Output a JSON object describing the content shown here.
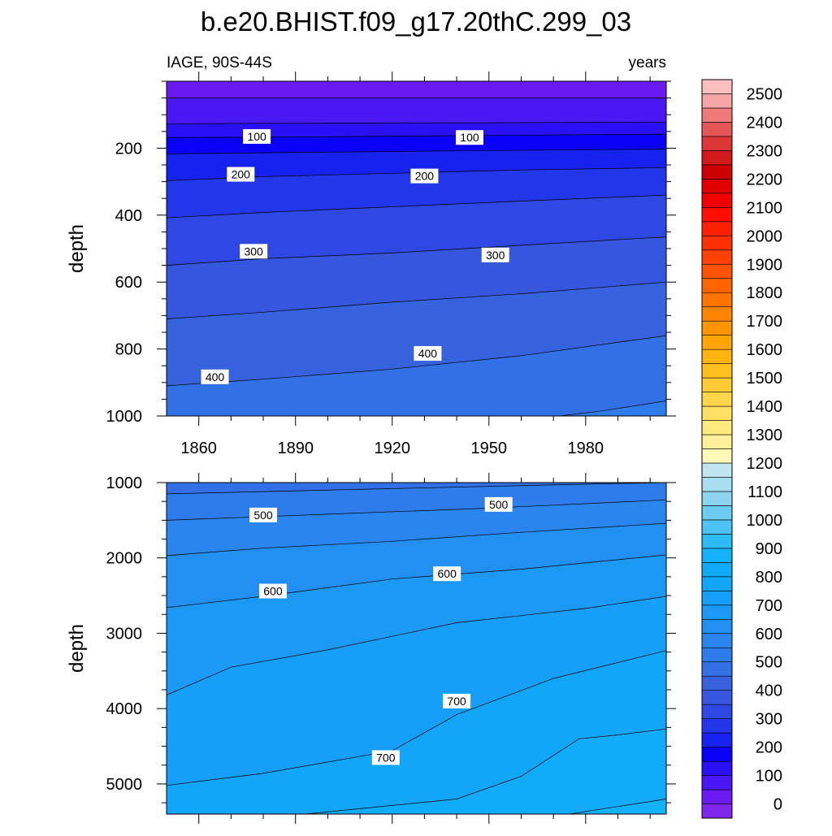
{
  "chart_data": {
    "type": "heatmap",
    "title": "b.e20.BHIST.f09_g17.20thC.299_03",
    "subtitle_left": "IAGE, 90S-44S",
    "subtitle_right": "years",
    "x_range": [
      1850,
      2005
    ],
    "x_ticks": [
      1860,
      1890,
      1920,
      1950,
      1980
    ],
    "colorbar": {
      "levels": [
        0,
        50,
        100,
        150,
        200,
        250,
        300,
        350,
        400,
        450,
        500,
        550,
        600,
        650,
        700,
        750,
        800,
        850,
        900,
        950,
        1000,
        1050,
        1100,
        1150,
        1200,
        1250,
        1300,
        1350,
        1400,
        1450,
        1500,
        1550,
        1600,
        1650,
        1700,
        1750,
        1800,
        1850,
        1900,
        1950,
        2000,
        2050,
        2100,
        2150,
        2200,
        2250,
        2300,
        2350,
        2400,
        2450,
        2500
      ],
      "labels": [
        "0",
        "100",
        "200",
        "300",
        "400",
        "500",
        "600",
        "700",
        "800",
        "900",
        "1000",
        "1100",
        "1200",
        "1300",
        "1400",
        "1500",
        "1600",
        "1700",
        "1800",
        "1900",
        "2000",
        "2100",
        "2200",
        "2300",
        "2400",
        "2500"
      ],
      "colors": [
        "#7F26EC",
        "#6A1BF2",
        "#4A18F4",
        "#2A10F6",
        "#0A00F6",
        "#1822F0",
        "#2436EA",
        "#2F47E3",
        "#3556DD",
        "#3762DD",
        "#3270E6",
        "#2E7CEB",
        "#2A86EE",
        "#228FF2",
        "#1C98F5",
        "#169FF8",
        "#12A6F9",
        "#10ACFA",
        "#14B2FA",
        "#2DBBF4",
        "#4CC3F2",
        "#6CCBF0",
        "#8CD4F0",
        "#A9DDF0",
        "#C2E5F2",
        "#FFF9B8",
        "#FFF19A",
        "#FFEA7D",
        "#FFE062",
        "#FFD64A",
        "#FFCB34",
        "#FFC020",
        "#FFB410",
        "#FFA506",
        "#FF9502",
        "#FF8500",
        "#FF7500",
        "#FF6400",
        "#FF5300",
        "#FF4200",
        "#FF3100",
        "#FF2000",
        "#FF1000",
        "#F20000",
        "#E00000",
        "#CC0000",
        "#D21A1A",
        "#DD3636",
        "#E55656",
        "#EE7A7A",
        "#F5A5A5",
        "#FBBFBF"
      ]
    },
    "panels": [
      {
        "name": "upper",
        "ylabel": "depth",
        "y_range": [
          0,
          1000
        ],
        "y_ticks": [
          200,
          400,
          600,
          800,
          1000
        ],
        "fill_floor": 0,
        "contours": [
          {
            "level": 50,
            "points": [
              [
                1850,
                50
              ],
              [
                2005,
                50
              ]
            ]
          },
          {
            "level": 100,
            "points": [
              [
                1850,
                127
              ],
              [
                1900,
                125
              ],
              [
                1950,
                124
              ],
              [
                2005,
                122
              ]
            ]
          },
          {
            "level": 150,
            "points": [
              [
                1850,
                168
              ],
              [
                1900,
                166
              ],
              [
                1950,
                162
              ],
              [
                2005,
                158
              ]
            ]
          },
          {
            "level": 200,
            "points": [
              [
                1850,
                217
              ],
              [
                1900,
                212
              ],
              [
                1950,
                207
              ],
              [
                2005,
                203
              ]
            ]
          },
          {
            "level": 250,
            "points": [
              [
                1850,
                297
              ],
              [
                1880,
                285
              ],
              [
                1920,
                275
              ],
              [
                1960,
                265
              ],
              [
                2005,
                258
              ]
            ]
          },
          {
            "level": 300,
            "points": [
              [
                1850,
                408
              ],
              [
                1880,
                392
              ],
              [
                1920,
                375
              ],
              [
                1960,
                358
              ],
              [
                2005,
                340
              ]
            ]
          },
          {
            "level": 350,
            "points": [
              [
                1850,
                550
              ],
              [
                1880,
                530
              ],
              [
                1920,
                513
              ],
              [
                1960,
                490
              ],
              [
                2005,
                465
              ]
            ]
          },
          {
            "level": 400,
            "points": [
              [
                1850,
                710
              ],
              [
                1880,
                690
              ],
              [
                1920,
                660
              ],
              [
                1960,
                635
              ],
              [
                2005,
                600
              ]
            ]
          },
          {
            "level": 450,
            "points": [
              [
                1850,
                910
              ],
              [
                1880,
                890
              ],
              [
                1920,
                860
              ],
              [
                1960,
                820
              ],
              [
                2005,
                760
              ]
            ]
          },
          {
            "level": 500,
            "points": [
              [
                1972,
                1000
              ],
              [
                1985,
                985
              ],
              [
                2005,
                955
              ]
            ]
          }
        ],
        "labels": [
          {
            "text": "100",
            "x": 1878,
            "y": 165
          },
          {
            "text": "100",
            "x": 1944,
            "y": 168
          },
          {
            "text": "200",
            "x": 1873,
            "y": 278
          },
          {
            "text": "200",
            "x": 1930,
            "y": 283
          },
          {
            "text": "300",
            "x": 1877,
            "y": 508
          },
          {
            "text": "300",
            "x": 1952,
            "y": 519
          },
          {
            "text": "400",
            "x": 1865,
            "y": 883
          },
          {
            "text": "400",
            "x": 1931,
            "y": 813
          }
        ]
      },
      {
        "name": "lower",
        "ylabel": "depth",
        "y_range": [
          1000,
          5400
        ],
        "y_ticks": [
          1000,
          2000,
          3000,
          4000,
          5000
        ],
        "fill_floor": 450,
        "contours": [
          {
            "level": 500,
            "points": [
              [
                1850,
                1150
              ],
              [
                1920,
                1080
              ],
              [
                1980,
                1020
              ],
              [
                2005,
                1000
              ]
            ]
          },
          {
            "level": 550,
            "points": [
              [
                1850,
                1500
              ],
              [
                1900,
                1420
              ],
              [
                1950,
                1340
              ],
              [
                2005,
                1230
              ]
            ]
          },
          {
            "level": 600,
            "points": [
              [
                1850,
                1970
              ],
              [
                1880,
                1870
              ],
              [
                1920,
                1780
              ],
              [
                1960,
                1660
              ],
              [
                2005,
                1540
              ]
            ]
          },
          {
            "level": 650,
            "points": [
              [
                1850,
                2660
              ],
              [
                1880,
                2510
              ],
              [
                1920,
                2280
              ],
              [
                1960,
                2150
              ],
              [
                2005,
                1960
              ]
            ]
          },
          {
            "level": 700,
            "points": [
              [
                1850,
                3820
              ],
              [
                1870,
                3450
              ],
              [
                1900,
                3220
              ],
              [
                1940,
                2860
              ],
              [
                1980,
                2670
              ],
              [
                2005,
                2510
              ]
            ]
          },
          {
            "level": 750,
            "points": [
              [
                1850,
                5020
              ],
              [
                1880,
                4860
              ],
              [
                1920,
                4560
              ],
              [
                1940,
                4080
              ],
              [
                1970,
                3600
              ],
              [
                2005,
                3230
              ]
            ]
          },
          {
            "level": 800,
            "points": [
              [
                1893,
                5400
              ],
              [
                1940,
                5200
              ],
              [
                1960,
                4900
              ],
              [
                1978,
                4400
              ],
              [
                1990,
                4350
              ],
              [
                2005,
                4270
              ]
            ]
          },
          {
            "level": 850,
            "points": [
              [
                1975,
                5400
              ],
              [
                1990,
                5300
              ],
              [
                2005,
                5200
              ]
            ]
          }
        ],
        "labels": [
          {
            "text": "500",
            "x": 1880,
            "y": 1430
          },
          {
            "text": "500",
            "x": 1953,
            "y": 1290
          },
          {
            "text": "600",
            "x": 1883,
            "y": 2440
          },
          {
            "text": "600",
            "x": 1937,
            "y": 2210
          },
          {
            "text": "700",
            "x": 1918,
            "y": 4650
          },
          {
            "text": "700",
            "x": 1940,
            "y": 3900
          }
        ]
      }
    ]
  }
}
